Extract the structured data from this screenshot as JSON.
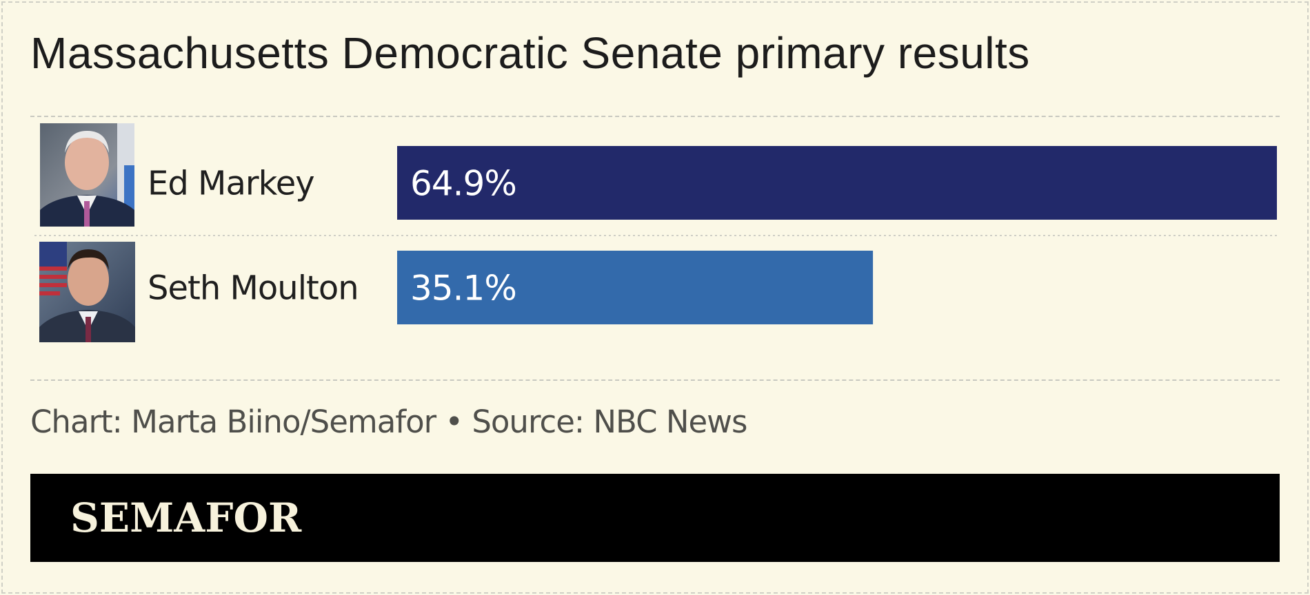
{
  "title": "Massachusetts Democratic Senate primary results",
  "credit": "Chart: Marta Biino/Semafor • Source: NBC News",
  "brand": "SEMAFOR",
  "colors": {
    "background": "#fbf8e6",
    "markey_bar": "#22296a",
    "moulton_bar": "#336aab",
    "brand_bar": "#000000"
  },
  "chart_data": {
    "type": "bar",
    "orientation": "horizontal",
    "categories": [
      "Ed Markey",
      "Seth Moulton"
    ],
    "values": [
      64.9,
      35.1
    ],
    "value_labels": [
      "64.9%",
      "35.1%"
    ],
    "xlim": [
      0,
      64.9
    ],
    "unit": "%",
    "icons": [
      "markey-portrait-photo",
      "moulton-portrait-photo"
    ]
  }
}
